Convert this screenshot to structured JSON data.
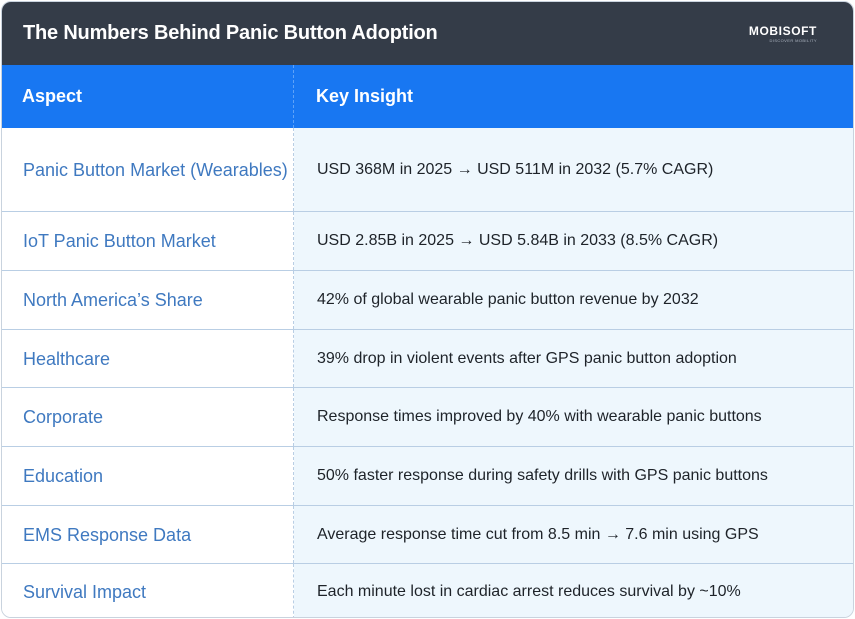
{
  "header": {
    "title": "The Numbers Behind Panic Button Adoption",
    "logo_text": "MOBISOFT",
    "logo_tagline": "DISCOVER MOBILITY"
  },
  "table": {
    "columns": [
      "Aspect",
      "Key Insight"
    ],
    "rows": [
      {
        "aspect": "Panic Button Market (Wearables)",
        "insight": "USD 368M in 2025 → USD 511M in 2032 (5.7% CAGR)"
      },
      {
        "aspect": "IoT Panic Button Market",
        "insight": "USD 2.85B in 2025 → USD 5.84B in 2033 (8.5% CAGR)"
      },
      {
        "aspect": "North America’s Share",
        "insight": "42% of global wearable panic button revenue by 2032"
      },
      {
        "aspect": "Healthcare",
        "insight": "39% drop in violent events after GPS panic button adoption"
      },
      {
        "aspect": "Corporate",
        "insight": "Response times improved by 40% with wearable panic buttons"
      },
      {
        "aspect": "Education",
        "insight": "50% faster response during safety drills with GPS panic buttons"
      },
      {
        "aspect": "EMS Response Data",
        "insight": "Average response time cut from 8.5 min → 7.6 min using GPS"
      },
      {
        "aspect": "Survival Impact",
        "insight": "Each minute lost in cardiac arrest reduces survival by ~10%"
      }
    ]
  },
  "colors": {
    "title_bar": "#343c48",
    "header_row": "#1877f2",
    "aspect_text": "#3f79c0",
    "insight_bg": "#eef7fd"
  }
}
